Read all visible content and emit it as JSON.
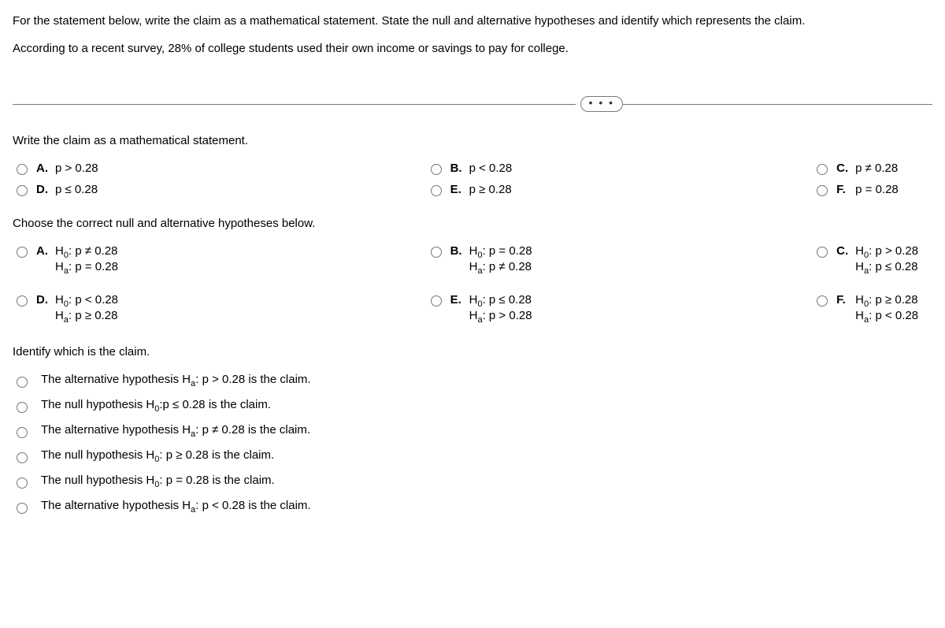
{
  "instructions": {
    "line1": "For the statement below, write the claim as a mathematical statement. State the null and alternative hypotheses and identify which represents the claim.",
    "line2": "According to a recent survey, 28% of college students used their own income or savings to pay for college."
  },
  "q1": {
    "prompt": "Write the claim as a mathematical statement.",
    "opts": {
      "A": "p > 0.28",
      "B": "p < 0.28",
      "C": "p ≠ 0.28",
      "D": "p ≤ 0.28",
      "E": "p ≥ 0.28",
      "F": "p = 0.28"
    }
  },
  "q2": {
    "prompt": "Choose the correct null and alternative hypotheses below.",
    "opts": {
      "A": {
        "h0": "p ≠ 0.28",
        "ha": "p = 0.28"
      },
      "B": {
        "h0": "p = 0.28",
        "ha": "p ≠ 0.28"
      },
      "C": {
        "h0": "p > 0.28",
        "ha": "p ≤ 0.28"
      },
      "D": {
        "h0": "p < 0.28",
        "ha": "p ≥ 0.28"
      },
      "E": {
        "h0": "p ≤ 0.28",
        "ha": "p > 0.28"
      },
      "F": {
        "h0": "p ≥ 0.28",
        "ha": "p < 0.28"
      }
    }
  },
  "q3": {
    "prompt": "Identify which is the claim.",
    "opts": [
      {
        "pre": "The alternative hypothesis H",
        "sub": "a",
        "post": ": p > 0.28 is the claim."
      },
      {
        "pre": "The null hypothesis H",
        "sub": "0",
        "post": ":p ≤ 0.28 is the claim."
      },
      {
        "pre": "The alternative hypothesis H",
        "sub": "a",
        "post": ": p ≠ 0.28 is the claim."
      },
      {
        "pre": "The null hypothesis H",
        "sub": "0",
        "post": ": p ≥ 0.28 is the claim."
      },
      {
        "pre": "The null hypothesis H",
        "sub": "0",
        "post": ": p = 0.28 is the claim."
      },
      {
        "pre": "The alternative hypothesis H",
        "sub": "a",
        "post": ": p < 0.28 is the claim."
      }
    ]
  },
  "letters": {
    "A": "A.",
    "B": "B.",
    "C": "C.",
    "D": "D.",
    "E": "E.",
    "F": "F."
  },
  "h0_label": "H",
  "h0_sub": "0",
  "ha_label": "H",
  "ha_sub": "a",
  "colon": ": "
}
